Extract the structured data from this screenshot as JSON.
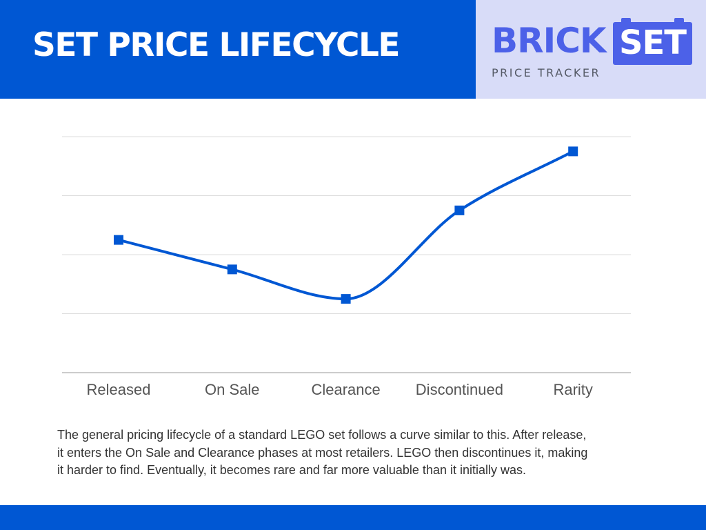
{
  "header": {
    "title": "SET PRICE LIFECYCLE"
  },
  "logo": {
    "word_brick": "BRICK",
    "word_set": "SET",
    "subtitle": "PRICE TRACKER"
  },
  "colors": {
    "header_blue": "#0057d3",
    "logo_panel": "#d8dcf8",
    "logo_blue": "#4c61e8",
    "line": "#0057d3",
    "grid": "#dddddd"
  },
  "chart_data": {
    "type": "line",
    "categories": [
      "Released",
      "On Sale",
      "Clearance",
      "Discontinued",
      "Rarity"
    ],
    "series": [
      {
        "values": [
          4,
          3,
          2,
          5,
          7
        ]
      }
    ],
    "ylim": [
      -0.5,
      7.5
    ],
    "grid": true,
    "y_tick_labels_shown": false,
    "line_style": "smoothed",
    "marker": "square"
  },
  "caption": "The general pricing lifecycle of a standard LEGO set follows a curve similar to this.  After release,\nit enters the On Sale and Clearance phases at most retailers.  LEGO then discontinues it, making\nit harder to find.  Eventually, it becomes rare and far more valuable than it initially was."
}
